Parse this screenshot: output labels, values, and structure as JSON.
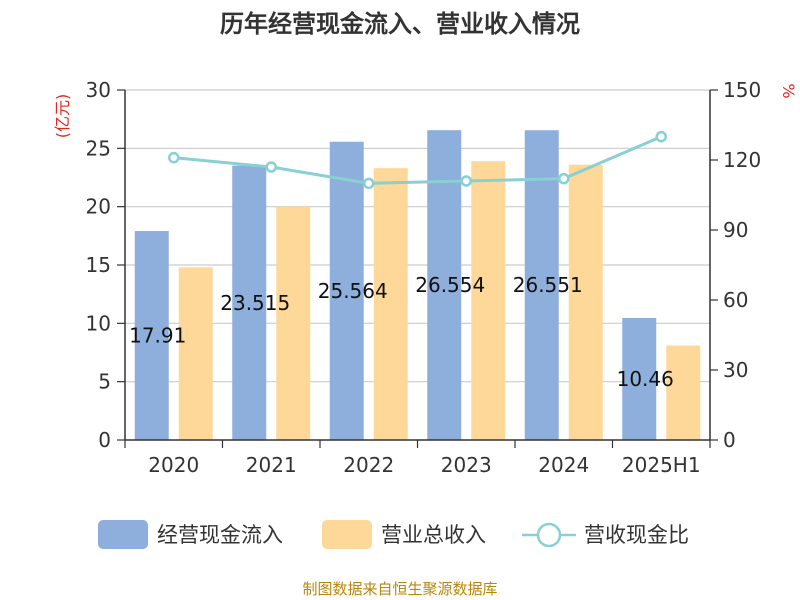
{
  "chart_data": {
    "type": "bar",
    "title": "历年经营现金流入、营业收入情况",
    "categories": [
      "2020",
      "2021",
      "2022",
      "2023",
      "2024",
      "2025H1"
    ],
    "y_left": {
      "unit": "(亿元)",
      "min": 0,
      "max": 30,
      "ticks": [
        "0",
        "5",
        "10",
        "15",
        "20",
        "25",
        "30"
      ]
    },
    "y_right": {
      "unit": "%",
      "min": 0,
      "max": 150,
      "ticks": [
        "0",
        "30",
        "60",
        "90",
        "120",
        "150"
      ]
    },
    "series": [
      {
        "name": "经营现金流入",
        "type": "bar",
        "axis": "left",
        "color": "#8eaedc",
        "values": [
          17.91,
          23.515,
          25.564,
          26.554,
          26.551,
          10.46
        ],
        "labels": [
          "17.91",
          "23.515",
          "25.564",
          "26.554",
          "26.551",
          "10.46"
        ]
      },
      {
        "name": "营业总收入",
        "type": "bar",
        "axis": "left",
        "color": "#fed898",
        "values": [
          14.8,
          20.0,
          23.3,
          23.9,
          23.6,
          8.1
        ]
      },
      {
        "name": "营收现金比",
        "type": "line",
        "axis": "right",
        "color": "#88d0d3",
        "values": [
          121,
          117,
          110,
          111,
          112,
          130
        ]
      }
    ],
    "grid": true,
    "legend_position": "bottom"
  },
  "source_note": "制图数据来自恒生聚源数据库"
}
